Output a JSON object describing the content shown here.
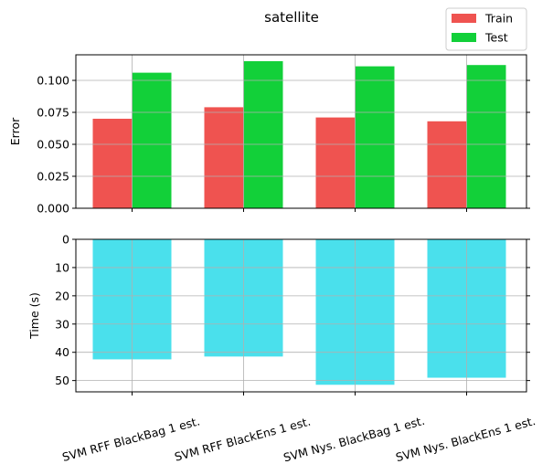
{
  "chart_data": [
    {
      "type": "bar",
      "title": "satellite",
      "categories": [
        "SVM RFF BlackBag 1 est.",
        "SVM RFF BlackEns 1 est.",
        "SVM Nys. BlackBag 1 est.",
        "SVM Nys. BlackEns 1 est."
      ],
      "series": [
        {
          "name": "Train",
          "values": [
            0.07,
            0.079,
            0.071,
            0.068
          ]
        },
        {
          "name": "Test",
          "values": [
            0.106,
            0.115,
            0.111,
            0.112
          ]
        }
      ],
      "xlabel": "",
      "ylabel": "Error",
      "ylim": [
        0,
        0.12
      ],
      "yticks": [
        "0.000",
        "0.025",
        "0.050",
        "0.075",
        "0.100"
      ],
      "yticks_values": [
        0,
        0.025,
        0.05,
        0.075,
        0.1
      ],
      "grid": true,
      "legend": "top-right"
    },
    {
      "type": "bar",
      "categories": [
        "SVM RFF BlackBag 1 est.",
        "SVM RFF BlackEns 1 est.",
        "SVM Nys. BlackBag 1 est.",
        "SVM Nys. BlackEns 1 est."
      ],
      "series": [
        {
          "values": [
            42.5,
            41.5,
            51.5,
            49
          ]
        }
      ],
      "xlabel": "",
      "ylabel": "Time (s)",
      "ylim": [
        54,
        0
      ],
      "inverted_y": true,
      "yticks": [
        "0",
        "10",
        "20",
        "30",
        "40",
        "50"
      ],
      "yticks_values": [
        0,
        10,
        20,
        30,
        40,
        50
      ],
      "grid": true
    }
  ],
  "colors": {
    "train": "#ef5350",
    "test": "#12d039",
    "time": "#4ae0ec"
  }
}
